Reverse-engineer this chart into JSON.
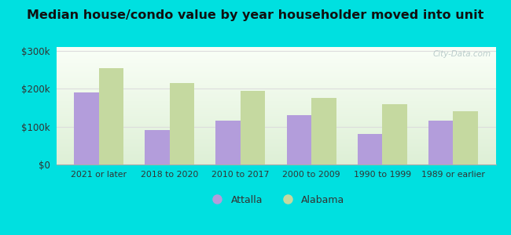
{
  "title": "Median house/condo value by year householder moved into unit",
  "categories": [
    "2021 or later",
    "2018 to 2020",
    "2010 to 2017",
    "2000 to 2009",
    "1990 to 1999",
    "1989 or earlier"
  ],
  "attalla_values": [
    190000,
    90000,
    115000,
    130000,
    80000,
    115000
  ],
  "alabama_values": [
    255000,
    215000,
    195000,
    175000,
    160000,
    140000
  ],
  "attalla_color": "#b39ddb",
  "alabama_color": "#c5d9a0",
  "background_outer": "#00e0e0",
  "yticks": [
    0,
    100000,
    200000,
    300000
  ],
  "ytick_labels": [
    "$0",
    "$100k",
    "$200k",
    "$300k"
  ],
  "ylim": [
    0,
    310000
  ],
  "bar_width": 0.35,
  "title_fontsize": 11.5,
  "legend_labels": [
    "Attalla",
    "Alabama"
  ],
  "watermark": "City-Data.com",
  "grid_color": "#dddddd",
  "text_color": "#333333"
}
